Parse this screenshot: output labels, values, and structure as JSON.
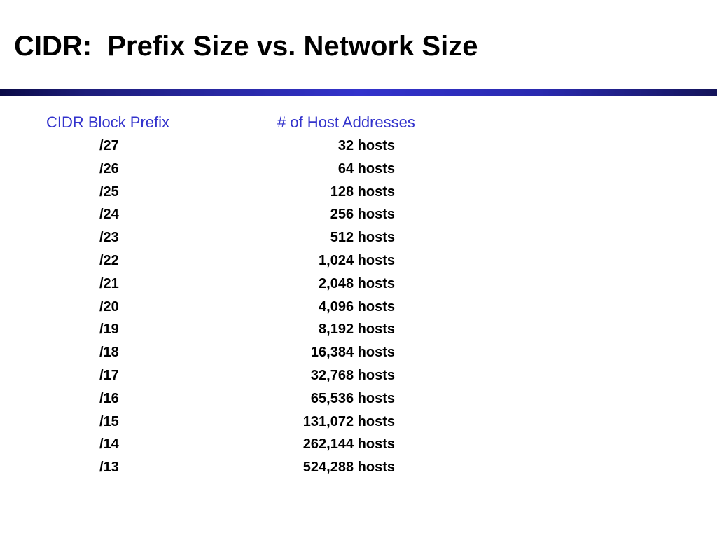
{
  "slide": {
    "title": "CIDR:  Prefix Size vs. Network Size"
  },
  "table": {
    "headers": {
      "prefix": "CIDR Block Prefix",
      "hosts": "# of Host Addresses"
    },
    "rows": [
      {
        "prefix": "/27",
        "hosts": "32 hosts"
      },
      {
        "prefix": "/26",
        "hosts": "64 hosts"
      },
      {
        "prefix": "/25",
        "hosts": "128 hosts"
      },
      {
        "prefix": "/24",
        "hosts": "256 hosts"
      },
      {
        "prefix": "/23",
        "hosts": "512 hosts"
      },
      {
        "prefix": "/22",
        "hosts": "1,024 hosts"
      },
      {
        "prefix": "/21",
        "hosts": "2,048 hosts"
      },
      {
        "prefix": "/20",
        "hosts": "4,096 hosts"
      },
      {
        "prefix": "/19",
        "hosts": "8,192 hosts"
      },
      {
        "prefix": "/18",
        "hosts": "16,384 hosts"
      },
      {
        "prefix": "/17",
        "hosts": "32,768 hosts"
      },
      {
        "prefix": "/16",
        "hosts": "65,536 hosts"
      },
      {
        "prefix": "/15",
        "hosts": "131,072 hosts"
      },
      {
        "prefix": "/14",
        "hosts": "262,144 hosts"
      },
      {
        "prefix": "/13",
        "hosts": "524,288 hosts"
      }
    ]
  },
  "colors": {
    "header_text": "#3333cc",
    "title_bar": "#2a2aa8"
  }
}
